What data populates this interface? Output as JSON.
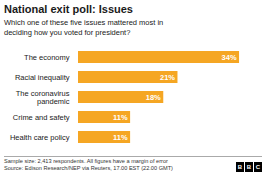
{
  "chart_data": {
    "type": "bar",
    "orientation": "horizontal",
    "title": "National exit poll: Issues",
    "subtitle": "Which one of these five issues mattered most in\ndeciding how you voted for president?",
    "categories": [
      "Health care policy",
      "Crime and safety",
      "The coronavirus\npandemic",
      "Racial inequality",
      "The economy"
    ],
    "values": [
      11,
      11,
      18,
      21,
      34
    ],
    "value_labels": [
      "11%",
      "11%",
      "18%",
      "21%",
      "34%"
    ],
    "data_labels": true,
    "color": "#F5A623",
    "xlim": [
      0,
      38
    ],
    "tick_labels": "y",
    "grid": false,
    "footnotes": [
      "Sample size: 2,413 respondents. All figures have a margin of error",
      "Source: Edison Research/NEP via Reuters, 17.00 EST (22.00 GMT)"
    ],
    "logo": "BBC"
  }
}
